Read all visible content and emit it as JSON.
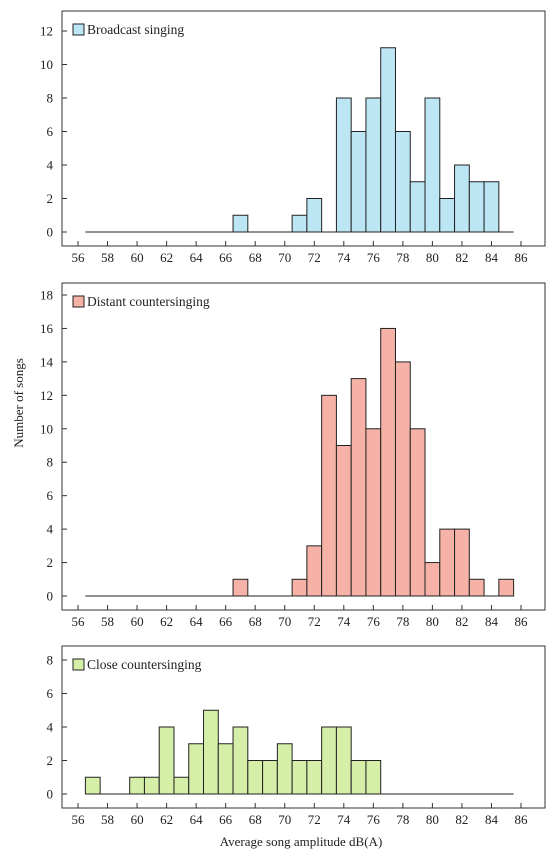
{
  "figure": {
    "ylabel": "Number of songs",
    "xlabel": "Average song amplitude dB(A)"
  },
  "chart_data": [
    {
      "type": "bar",
      "legend": "Broadcast  singing",
      "color": "#bde6f5",
      "bin_width": 1,
      "bin_centers": [
        67,
        71,
        72,
        74,
        75,
        76,
        77,
        78,
        79,
        80,
        81,
        82,
        83,
        84
      ],
      "values": [
        1,
        1,
        2,
        8,
        6,
        8,
        11,
        6,
        3,
        8,
        2,
        4,
        3,
        3
      ],
      "xlim": [
        56.5,
        85.5
      ],
      "xticks": [
        56,
        58,
        60,
        62,
        64,
        66,
        68,
        70,
        72,
        74,
        76,
        78,
        80,
        82,
        84,
        86
      ],
      "ylim": [
        0,
        12
      ],
      "yticks": [
        0,
        2,
        4,
        6,
        8,
        10,
        12
      ],
      "grid": false,
      "legend_position": "top-left"
    },
    {
      "type": "bar",
      "legend": "Distant countersinging",
      "color": "#f6b2a6",
      "bin_width": 1,
      "bin_centers": [
        67,
        71,
        72,
        73,
        74,
        75,
        76,
        77,
        78,
        79,
        80,
        81,
        82,
        83,
        85
      ],
      "values": [
        1,
        1,
        3,
        12,
        9,
        13,
        10,
        16,
        14,
        10,
        2,
        4,
        4,
        1,
        1
      ],
      "xlim": [
        56.5,
        85.5
      ],
      "xticks": [
        56,
        58,
        60,
        62,
        64,
        66,
        68,
        70,
        72,
        74,
        76,
        78,
        80,
        82,
        84,
        86
      ],
      "ylim": [
        0,
        18
      ],
      "yticks": [
        0,
        2,
        4,
        6,
        8,
        10,
        12,
        14,
        16,
        18
      ],
      "grid": false,
      "legend_position": "top-left"
    },
    {
      "type": "bar",
      "legend": "Close countersinging",
      "color": "#d6efa8",
      "bin_width": 1,
      "bin_centers": [
        57,
        60,
        61,
        62,
        63,
        64,
        65,
        66,
        67,
        68,
        69,
        70,
        71,
        72,
        73,
        74,
        75,
        76
      ],
      "values": [
        1,
        1,
        1,
        4,
        1,
        3,
        5,
        3,
        4,
        2,
        2,
        3,
        2,
        2,
        4,
        4,
        2,
        2
      ],
      "xlim": [
        56.5,
        85.5
      ],
      "xticks": [
        56,
        58,
        60,
        62,
        64,
        66,
        68,
        70,
        72,
        74,
        76,
        78,
        80,
        82,
        84,
        86
      ],
      "ylim": [
        0,
        8
      ],
      "yticks": [
        0,
        2,
        4,
        6,
        8
      ],
      "grid": false,
      "legend_position": "top-left"
    }
  ]
}
